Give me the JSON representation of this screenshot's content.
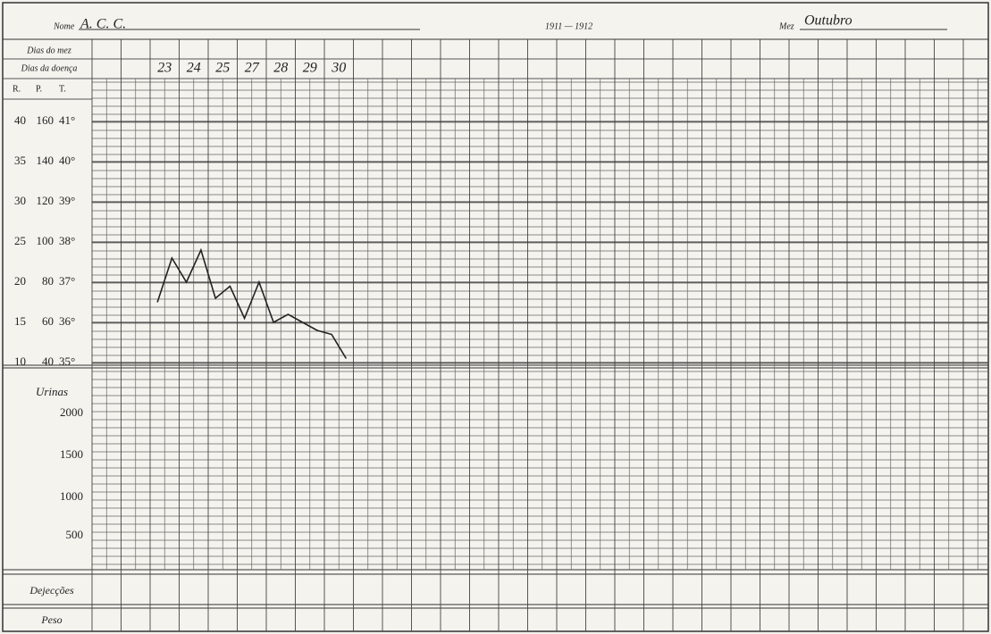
{
  "header": {
    "name_label": "Nome",
    "name": "A. C. C.",
    "years": "1911 — 1912",
    "month_label": "Mez",
    "month": "Outubro"
  },
  "rows": {
    "days_of_month": "Dias do mez",
    "days_of_illness": "Dias da doença",
    "r": "R.",
    "p": "P.",
    "t": "T.",
    "urine": "Urinas",
    "dejections": "Dejecções",
    "weight": "Peso"
  },
  "days": [
    "23",
    "24",
    "25",
    "27",
    "28",
    "29",
    "30"
  ],
  "r_ticks": [
    40,
    35,
    30,
    25,
    20,
    15,
    10
  ],
  "p_ticks": [
    160,
    140,
    120,
    100,
    80,
    60,
    40
  ],
  "urine_ticks": [
    2000,
    1500,
    1000,
    500
  ],
  "chart_data": {
    "type": "line",
    "color": "#222222",
    "values": [
      36.5,
      37.6,
      37.0,
      37.8,
      36.6,
      36.9,
      36.1,
      37.0,
      36.0,
      36.2,
      36.0,
      35.8,
      35.7,
      35.1
    ],
    "ylim": [
      35,
      41
    ],
    "yticks": [
      {
        "value": 41,
        "label": "41°"
      },
      {
        "value": 40,
        "label": "40°"
      },
      {
        "value": 39,
        "label": "39°"
      },
      {
        "value": 38,
        "label": "38°"
      },
      {
        "value": 37,
        "label": "37°"
      },
      {
        "value": 36,
        "label": "36°"
      },
      {
        "value": 35,
        "label": "35°"
      }
    ]
  }
}
